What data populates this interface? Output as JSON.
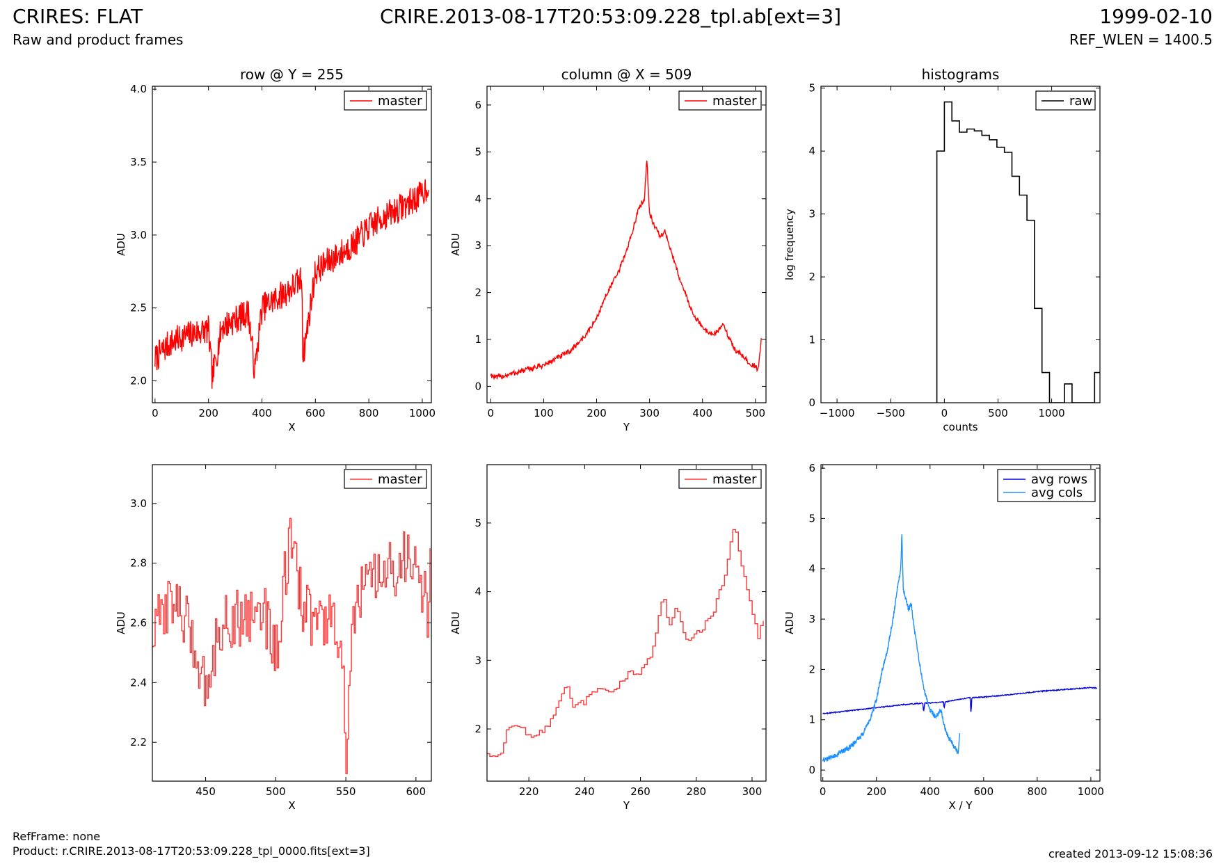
{
  "header": {
    "title": "CRIRES: FLAT",
    "subtitle": "Raw and product frames",
    "file": "CRIRE.2013-08-17T20:53:09.228_tpl.ab[ext=3]",
    "date": "1999-02-10",
    "ref_wlen": "REF_WLEN = 1400.5"
  },
  "footer": {
    "ref_frame": "RefFrame: none",
    "product": "Product: r.CRIRE.2013-08-17T20:53:09.228_tpl_0000.fits[ext=3]",
    "created": "created 2013-09-12 15:08:36"
  },
  "colors": {
    "red": "#ff0000",
    "black": "#000000",
    "blue": "#0000dd",
    "light_blue": "#1e90ff"
  },
  "chart_data": [
    {
      "id": "row",
      "type": "line",
      "title": "row @ Y = 255",
      "xlabel": "X",
      "ylabel": "ADU",
      "xlim": [
        -10,
        1034
      ],
      "ylim": [
        1.85,
        4.02
      ],
      "xticks": [
        0,
        200,
        400,
        600,
        800,
        1000
      ],
      "yticks": [
        2.0,
        2.5,
        3.0,
        3.5,
        4.0
      ],
      "ytick_labels": [
        "2.0",
        "2.5",
        "3.0",
        "3.5",
        "4.0"
      ],
      "legend": "top-right",
      "series": [
        {
          "name": "master",
          "color": "#ff0000",
          "x": [
            0,
            50,
            100,
            150,
            200,
            214,
            250,
            300,
            350,
            373,
            400,
            450,
            500,
            550,
            553,
            600,
            650,
            700,
            750,
            800,
            850,
            900,
            950,
            1000,
            1023
          ],
          "y": [
            2.15,
            2.25,
            2.3,
            2.33,
            2.35,
            2.02,
            2.37,
            2.42,
            2.47,
            2.06,
            2.5,
            2.56,
            2.62,
            2.7,
            2.15,
            2.75,
            2.82,
            2.88,
            2.95,
            3.05,
            3.12,
            3.17,
            3.22,
            3.28,
            3.35
          ],
          "noise": 0.1
        }
      ]
    },
    {
      "id": "column",
      "type": "line",
      "title": "column @ X = 509",
      "xlabel": "Y",
      "ylabel": "ADU",
      "xlim": [
        -7,
        520
      ],
      "ylim": [
        -0.35,
        6.4
      ],
      "xticks": [
        0,
        100,
        200,
        300,
        400,
        500
      ],
      "yticks": [
        0,
        1,
        2,
        3,
        4,
        5,
        6
      ],
      "legend": "top-right",
      "series": [
        {
          "name": "master",
          "color": "#ff0000",
          "x": [
            0,
            10,
            50,
            100,
            150,
            180,
            200,
            220,
            240,
            260,
            270,
            280,
            290,
            295,
            300,
            310,
            320,
            330,
            340,
            360,
            380,
            400,
            420,
            440,
            460,
            480,
            500,
            505,
            511
          ],
          "y": [
            0.25,
            0.18,
            0.3,
            0.45,
            0.75,
            1.1,
            1.45,
            2.0,
            2.4,
            3.0,
            3.4,
            3.8,
            4.0,
            4.85,
            3.7,
            3.4,
            3.2,
            3.3,
            2.9,
            2.2,
            1.6,
            1.25,
            1.1,
            1.3,
            0.8,
            0.6,
            0.4,
            0.35,
            1.0
          ],
          "noise": 0.06
        }
      ]
    },
    {
      "id": "histograms",
      "type": "histogram",
      "title": "histograms",
      "xlabel": "counts",
      "ylabel": "log frequency",
      "xlim": [
        -1150,
        1450
      ],
      "ylim": [
        0,
        5.03
      ],
      "xticks": [
        -1000,
        -500,
        0,
        500,
        1000
      ],
      "xtick_labels": [
        "−1000",
        "−500",
        "0",
        "500",
        "1000"
      ],
      "yticks": [
        0,
        1,
        2,
        3,
        4,
        5
      ],
      "legend": "top-right",
      "series": [
        {
          "name": "raw",
          "color": "#000000",
          "edges": [
            -70,
            0,
            70,
            140,
            210,
            280,
            350,
            420,
            490,
            560,
            630,
            700,
            770,
            840,
            910,
            980,
            1050,
            1120,
            1190,
            1260,
            1330,
            1400,
            1450
          ],
          "values": [
            4.0,
            4.78,
            4.48,
            4.3,
            4.35,
            4.32,
            4.25,
            4.18,
            4.06,
            3.98,
            3.6,
            3.3,
            2.9,
            1.5,
            0.48,
            0.0,
            0.0,
            0.3,
            0.0,
            0.0,
            0.0,
            0.48
          ]
        }
      ]
    },
    {
      "id": "row-zoom",
      "type": "line",
      "title": "",
      "xlabel": "X",
      "ylabel": "ADU",
      "xlim": [
        412,
        611
      ],
      "ylim": [
        2.07,
        3.13
      ],
      "xticks": [
        450,
        500,
        550,
        600
      ],
      "yticks": [
        2.2,
        2.4,
        2.6,
        2.8,
        3.0
      ],
      "ytick_labels": [
        "2.2",
        "2.4",
        "2.6",
        "2.8",
        "3.0"
      ],
      "legend": "top-right",
      "series": [
        {
          "name": "master",
          "color": "#ff3333",
          "x": [
            412,
            425,
            440,
            450,
            460,
            475,
            490,
            500,
            505,
            510,
            520,
            530,
            540,
            545,
            548,
            550,
            552,
            555,
            560,
            575,
            590,
            600,
            605,
            608,
            610
          ],
          "y": [
            2.55,
            2.7,
            2.55,
            2.38,
            2.6,
            2.62,
            2.65,
            2.5,
            2.72,
            2.85,
            2.65,
            2.6,
            2.6,
            2.55,
            2.4,
            2.15,
            2.3,
            2.6,
            2.7,
            2.75,
            2.8,
            2.85,
            2.7,
            2.62,
            2.77
          ],
          "noise": 0.1
        }
      ]
    },
    {
      "id": "column-zoom",
      "type": "line",
      "title": "",
      "xlabel": "Y",
      "ylabel": "ADU",
      "xlim": [
        205,
        305
      ],
      "ylim": [
        1.24,
        5.85
      ],
      "xticks": [
        220,
        240,
        260,
        280,
        300
      ],
      "yticks": [
        2,
        3,
        4,
        5
      ],
      "legend": "top-right",
      "series": [
        {
          "name": "master",
          "color": "#ff3333",
          "x": [
            205,
            210,
            212,
            215,
            220,
            225,
            230,
            233,
            236,
            240,
            245,
            250,
            255,
            260,
            264,
            268,
            270,
            273,
            276,
            280,
            285,
            290,
            293,
            294,
            297,
            300,
            302,
            304
          ],
          "y": [
            1.65,
            1.6,
            2.0,
            2.1,
            1.9,
            1.95,
            2.3,
            2.65,
            2.3,
            2.4,
            2.6,
            2.5,
            2.8,
            2.85,
            3.1,
            3.95,
            3.5,
            3.8,
            3.3,
            3.4,
            3.6,
            4.2,
            4.9,
            4.85,
            4.2,
            3.65,
            3.35,
            3.6
          ],
          "noise": 0.05
        }
      ]
    },
    {
      "id": "averages",
      "type": "line",
      "title": "",
      "xlabel": "X / Y",
      "ylabel": "ADU",
      "xlim": [
        -7,
        1034
      ],
      "ylim": [
        -0.22,
        6.07
      ],
      "xticks": [
        0,
        200,
        400,
        600,
        800,
        1000
      ],
      "yticks": [
        0,
        1,
        2,
        3,
        4,
        5,
        6
      ],
      "legend": "top-right",
      "series": [
        {
          "name": "avg rows",
          "color": "#0000dd",
          "x": [
            0,
            100,
            200,
            300,
            373,
            376,
            380,
            450,
            453,
            456,
            500,
            550,
            553,
            556,
            600,
            700,
            800,
            900,
            1000,
            1023
          ],
          "y": [
            1.12,
            1.18,
            1.24,
            1.3,
            1.33,
            1.15,
            1.33,
            1.35,
            1.22,
            1.35,
            1.4,
            1.44,
            1.1,
            1.44,
            1.45,
            1.5,
            1.56,
            1.6,
            1.64,
            1.63
          ],
          "noise": 0.01
        },
        {
          "name": "avg cols",
          "color": "#1e90ff",
          "x": [
            0,
            10,
            50,
            100,
            150,
            180,
            200,
            220,
            240,
            260,
            270,
            280,
            290,
            295,
            300,
            310,
            320,
            330,
            340,
            360,
            380,
            400,
            420,
            440,
            460,
            480,
            500,
            505,
            511
          ],
          "y": [
            0.22,
            0.2,
            0.3,
            0.45,
            0.72,
            1.05,
            1.4,
            1.95,
            2.35,
            2.95,
            3.3,
            3.7,
            3.95,
            4.7,
            3.6,
            3.4,
            3.2,
            3.3,
            2.85,
            2.15,
            1.55,
            1.2,
            1.05,
            1.2,
            0.75,
            0.55,
            0.38,
            0.35,
            0.7
          ],
          "noise": 0.05
        }
      ]
    }
  ]
}
